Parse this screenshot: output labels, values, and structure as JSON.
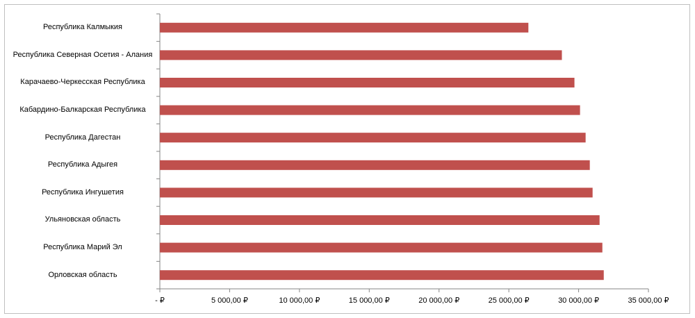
{
  "chart_data": {
    "type": "bar",
    "orientation": "horizontal",
    "categories": [
      "Республика Калмыкия",
      "Республика Северная Осетия - Алания",
      "Карачаево-Черкесская Республика",
      "Кабардино-Балкарская Республика",
      "Республика Дагестан",
      "Республика Адыгея",
      "Республика Ингушетия",
      "Ульяновская область",
      "Республика Марий Эл",
      "Орловская область"
    ],
    "values": [
      26400,
      28800,
      29700,
      30100,
      30500,
      30800,
      31000,
      31500,
      31700,
      31800
    ],
    "color": "#c0504d",
    "xlim": [
      0,
      35000
    ],
    "xticks": [
      {
        "value": 0,
        "label": "-  ₽"
      },
      {
        "value": 5000,
        "label": "5 000,00 ₽"
      },
      {
        "value": 10000,
        "label": "10 000,00 ₽"
      },
      {
        "value": 15000,
        "label": "15 000,00 ₽"
      },
      {
        "value": 20000,
        "label": "20 000,00 ₽"
      },
      {
        "value": 25000,
        "label": "25 000,00 ₽"
      },
      {
        "value": 30000,
        "label": "30 000,00 ₽"
      },
      {
        "value": 35000,
        "label": "35 000,00 ₽"
      }
    ],
    "grid": false
  }
}
